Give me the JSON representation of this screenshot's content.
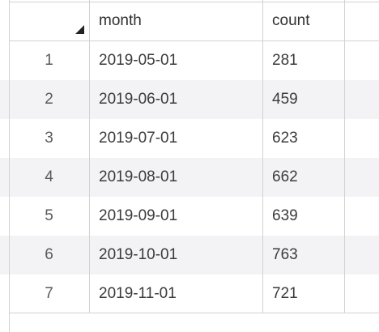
{
  "table": {
    "columns": [
      "month",
      "count"
    ],
    "rows": [
      {
        "index": "1",
        "month": "2019-05-01",
        "count": "281"
      },
      {
        "index": "2",
        "month": "2019-06-01",
        "count": "459"
      },
      {
        "index": "3",
        "month": "2019-07-01",
        "count": "623"
      },
      {
        "index": "4",
        "month": "2019-08-01",
        "count": "662"
      },
      {
        "index": "5",
        "month": "2019-09-01",
        "count": "639"
      },
      {
        "index": "6",
        "month": "2019-10-01",
        "count": "763"
      },
      {
        "index": "7",
        "month": "2019-11-01",
        "count": "721"
      }
    ]
  },
  "icons": {
    "corner": "sort-corner-icon"
  },
  "colors": {
    "alt_row": "#f3f3f6",
    "grid_line": "#d2d2d2"
  }
}
